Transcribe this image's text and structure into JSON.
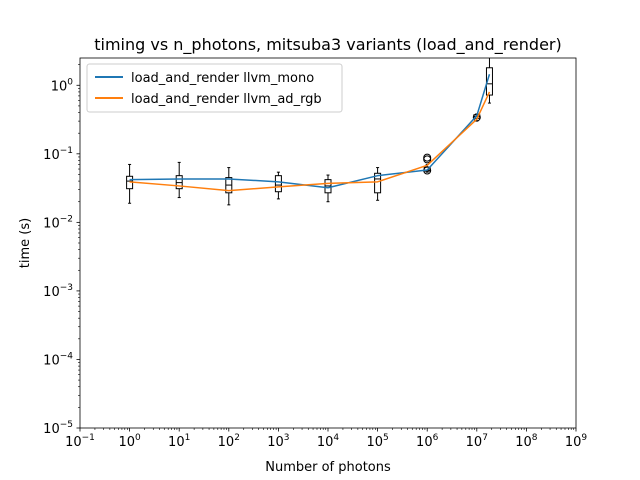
{
  "chart_data": {
    "type": "line",
    "title": "timing vs n_photons, mitsuba3 variants (load_and_render)",
    "xlabel": "Number of photons",
    "ylabel": "time (s)",
    "xscale": "log",
    "yscale": "log",
    "xlim": [
      0.1,
      1000000000
    ],
    "ylim": [
      1e-05,
      2.5
    ],
    "grid": false,
    "legend_position": "upper left",
    "x_ticks": [
      {
        "value": 0.1,
        "base": "10",
        "exp": "−1"
      },
      {
        "value": 1,
        "base": "10",
        "exp": "0"
      },
      {
        "value": 10,
        "base": "10",
        "exp": "1"
      },
      {
        "value": 100,
        "base": "10",
        "exp": "2"
      },
      {
        "value": 1000,
        "base": "10",
        "exp": "3"
      },
      {
        "value": 10000,
        "base": "10",
        "exp": "4"
      },
      {
        "value": 100000,
        "base": "10",
        "exp": "5"
      },
      {
        "value": 1000000,
        "base": "10",
        "exp": "6"
      },
      {
        "value": 10000000,
        "base": "10",
        "exp": "7"
      },
      {
        "value": 100000000,
        "base": "10",
        "exp": "8"
      },
      {
        "value": 1000000000,
        "base": "10",
        "exp": "9"
      }
    ],
    "y_ticks": [
      {
        "value": 1e-05,
        "base": "10",
        "exp": "−5"
      },
      {
        "value": 0.0001,
        "base": "10",
        "exp": "−4"
      },
      {
        "value": 0.001,
        "base": "10",
        "exp": "−3"
      },
      {
        "value": 0.01,
        "base": "10",
        "exp": "−2"
      },
      {
        "value": 0.1,
        "base": "10",
        "exp": "−1"
      },
      {
        "value": 1,
        "base": "10",
        "exp": "0"
      }
    ],
    "x": [
      1,
      10,
      100,
      1000,
      10000,
      100000,
      1000000,
      10000000,
      18000000
    ],
    "series": [
      {
        "name": "load_and_render llvm_mono",
        "color": "#1f77b4",
        "values": [
          0.042,
          0.043,
          0.043,
          0.039,
          0.032,
          0.048,
          0.058,
          0.36,
          1.45
        ]
      },
      {
        "name": "load_and_render llvm_ad_rgb",
        "color": "#ff7f0e",
        "values": [
          0.039,
          0.034,
          0.029,
          0.033,
          0.037,
          0.039,
          0.068,
          0.32,
          0.8
        ]
      }
    ],
    "boxplots": [
      {
        "x": 1,
        "whisker_low": 0.019,
        "q1": 0.031,
        "median": 0.04,
        "q3": 0.047,
        "whisker_high": 0.07,
        "outliers": []
      },
      {
        "x": 10,
        "whisker_low": 0.023,
        "q1": 0.031,
        "median": 0.038,
        "q3": 0.048,
        "whisker_high": 0.075,
        "outliers": []
      },
      {
        "x": 100,
        "whisker_low": 0.018,
        "q1": 0.027,
        "median": 0.035,
        "q3": 0.045,
        "whisker_high": 0.063,
        "outliers": []
      },
      {
        "x": 1000,
        "whisker_low": 0.022,
        "q1": 0.028,
        "median": 0.035,
        "q3": 0.048,
        "whisker_high": 0.054,
        "outliers": []
      },
      {
        "x": 10000,
        "whisker_low": 0.02,
        "q1": 0.027,
        "median": 0.034,
        "q3": 0.042,
        "whisker_high": 0.049,
        "outliers": []
      },
      {
        "x": 100000,
        "whisker_low": 0.021,
        "q1": 0.027,
        "median": 0.043,
        "q3": 0.052,
        "whisker_high": 0.063,
        "outliers": []
      },
      {
        "x": 1000000,
        "whisker_low": 0.054,
        "q1": 0.056,
        "median": 0.058,
        "q3": 0.064,
        "whisker_high": 0.07,
        "outliers": [
          0.083,
          0.088,
          0.057
        ]
      },
      {
        "x": 10000000,
        "whisker_low": 0.3,
        "q1": 0.33,
        "median": 0.35,
        "q3": 0.37,
        "whisker_high": 0.38,
        "outliers": [
          0.34
        ]
      },
      {
        "x": 18000000,
        "whisker_low": 0.55,
        "q1": 0.72,
        "median": 1.05,
        "q3": 1.8,
        "whisker_high": 2.6,
        "outliers": []
      }
    ]
  }
}
